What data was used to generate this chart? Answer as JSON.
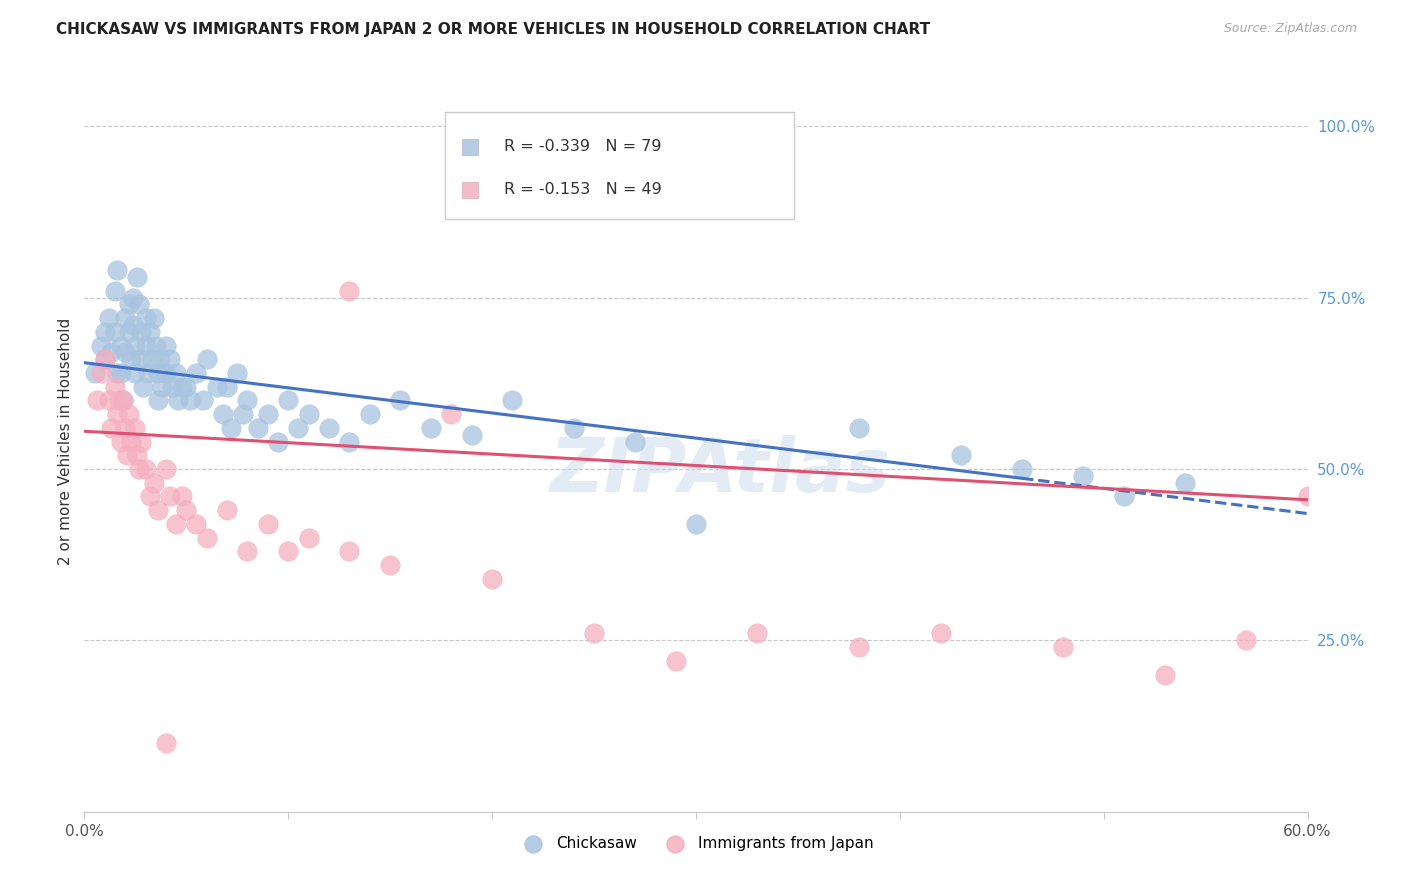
{
  "title": "CHICKASAW VS IMMIGRANTS FROM JAPAN 2 OR MORE VEHICLES IN HOUSEHOLD CORRELATION CHART",
  "source": "Source: ZipAtlas.com",
  "ylabel": "2 or more Vehicles in Household",
  "xlim": [
    0.0,
    0.6
  ],
  "ylim": [
    0.0,
    1.05
  ],
  "blue_R": -0.339,
  "blue_N": 79,
  "pink_R": -0.153,
  "pink_N": 49,
  "blue_color": "#a8c4e0",
  "pink_color": "#f4afc0",
  "blue_line_color": "#4472c4",
  "pink_line_color": "#e05070",
  "legend_label_blue": "Chickasaw",
  "legend_label_pink": "Immigrants from Japan",
  "watermark": "ZIPAtlas",
  "background_color": "#ffffff",
  "blue_line_x0": 0.0,
  "blue_line_y0": 0.655,
  "blue_line_x1": 0.6,
  "blue_line_y1": 0.435,
  "blue_line_solid_end": 0.46,
  "pink_line_x0": 0.0,
  "pink_line_y0": 0.555,
  "pink_line_x1": 0.6,
  "pink_line_y1": 0.455,
  "blue_x": [
    0.005,
    0.008,
    0.01,
    0.01,
    0.012,
    0.013,
    0.015,
    0.015,
    0.016,
    0.016,
    0.018,
    0.018,
    0.019,
    0.02,
    0.02,
    0.022,
    0.022,
    0.023,
    0.024,
    0.024,
    0.025,
    0.025,
    0.026,
    0.027,
    0.028,
    0.028,
    0.029,
    0.03,
    0.03,
    0.031,
    0.032,
    0.033,
    0.034,
    0.035,
    0.036,
    0.036,
    0.037,
    0.038,
    0.04,
    0.04,
    0.042,
    0.043,
    0.045,
    0.046,
    0.048,
    0.05,
    0.052,
    0.055,
    0.058,
    0.06,
    0.065,
    0.068,
    0.07,
    0.072,
    0.075,
    0.078,
    0.08,
    0.085,
    0.09,
    0.095,
    0.1,
    0.105,
    0.11,
    0.12,
    0.13,
    0.14,
    0.155,
    0.17,
    0.19,
    0.21,
    0.24,
    0.27,
    0.3,
    0.38,
    0.43,
    0.46,
    0.49,
    0.51,
    0.54
  ],
  "blue_y": [
    0.64,
    0.68,
    0.7,
    0.66,
    0.72,
    0.67,
    0.76,
    0.7,
    0.64,
    0.79,
    0.68,
    0.64,
    0.6,
    0.72,
    0.67,
    0.74,
    0.7,
    0.66,
    0.75,
    0.71,
    0.68,
    0.64,
    0.78,
    0.74,
    0.7,
    0.66,
    0.62,
    0.72,
    0.68,
    0.64,
    0.7,
    0.66,
    0.72,
    0.68,
    0.64,
    0.6,
    0.66,
    0.62,
    0.68,
    0.64,
    0.66,
    0.62,
    0.64,
    0.6,
    0.62,
    0.62,
    0.6,
    0.64,
    0.6,
    0.66,
    0.62,
    0.58,
    0.62,
    0.56,
    0.64,
    0.58,
    0.6,
    0.56,
    0.58,
    0.54,
    0.6,
    0.56,
    0.58,
    0.56,
    0.54,
    0.58,
    0.6,
    0.56,
    0.55,
    0.6,
    0.56,
    0.54,
    0.42,
    0.56,
    0.52,
    0.5,
    0.49,
    0.46,
    0.48
  ],
  "pink_x": [
    0.006,
    0.008,
    0.01,
    0.012,
    0.013,
    0.015,
    0.016,
    0.017,
    0.018,
    0.019,
    0.02,
    0.021,
    0.022,
    0.023,
    0.025,
    0.026,
    0.027,
    0.028,
    0.03,
    0.032,
    0.034,
    0.036,
    0.04,
    0.042,
    0.045,
    0.048,
    0.05,
    0.055,
    0.06,
    0.07,
    0.08,
    0.09,
    0.1,
    0.11,
    0.13,
    0.15,
    0.18,
    0.2,
    0.25,
    0.29,
    0.33,
    0.38,
    0.42,
    0.48,
    0.53,
    0.57,
    0.6,
    0.13,
    0.04
  ],
  "pink_y": [
    0.6,
    0.64,
    0.66,
    0.6,
    0.56,
    0.62,
    0.58,
    0.6,
    0.54,
    0.6,
    0.56,
    0.52,
    0.58,
    0.54,
    0.56,
    0.52,
    0.5,
    0.54,
    0.5,
    0.46,
    0.48,
    0.44,
    0.5,
    0.46,
    0.42,
    0.46,
    0.44,
    0.42,
    0.4,
    0.44,
    0.38,
    0.42,
    0.38,
    0.4,
    0.38,
    0.36,
    0.58,
    0.34,
    0.26,
    0.22,
    0.26,
    0.24,
    0.26,
    0.24,
    0.2,
    0.25,
    0.46,
    0.76,
    0.1
  ]
}
